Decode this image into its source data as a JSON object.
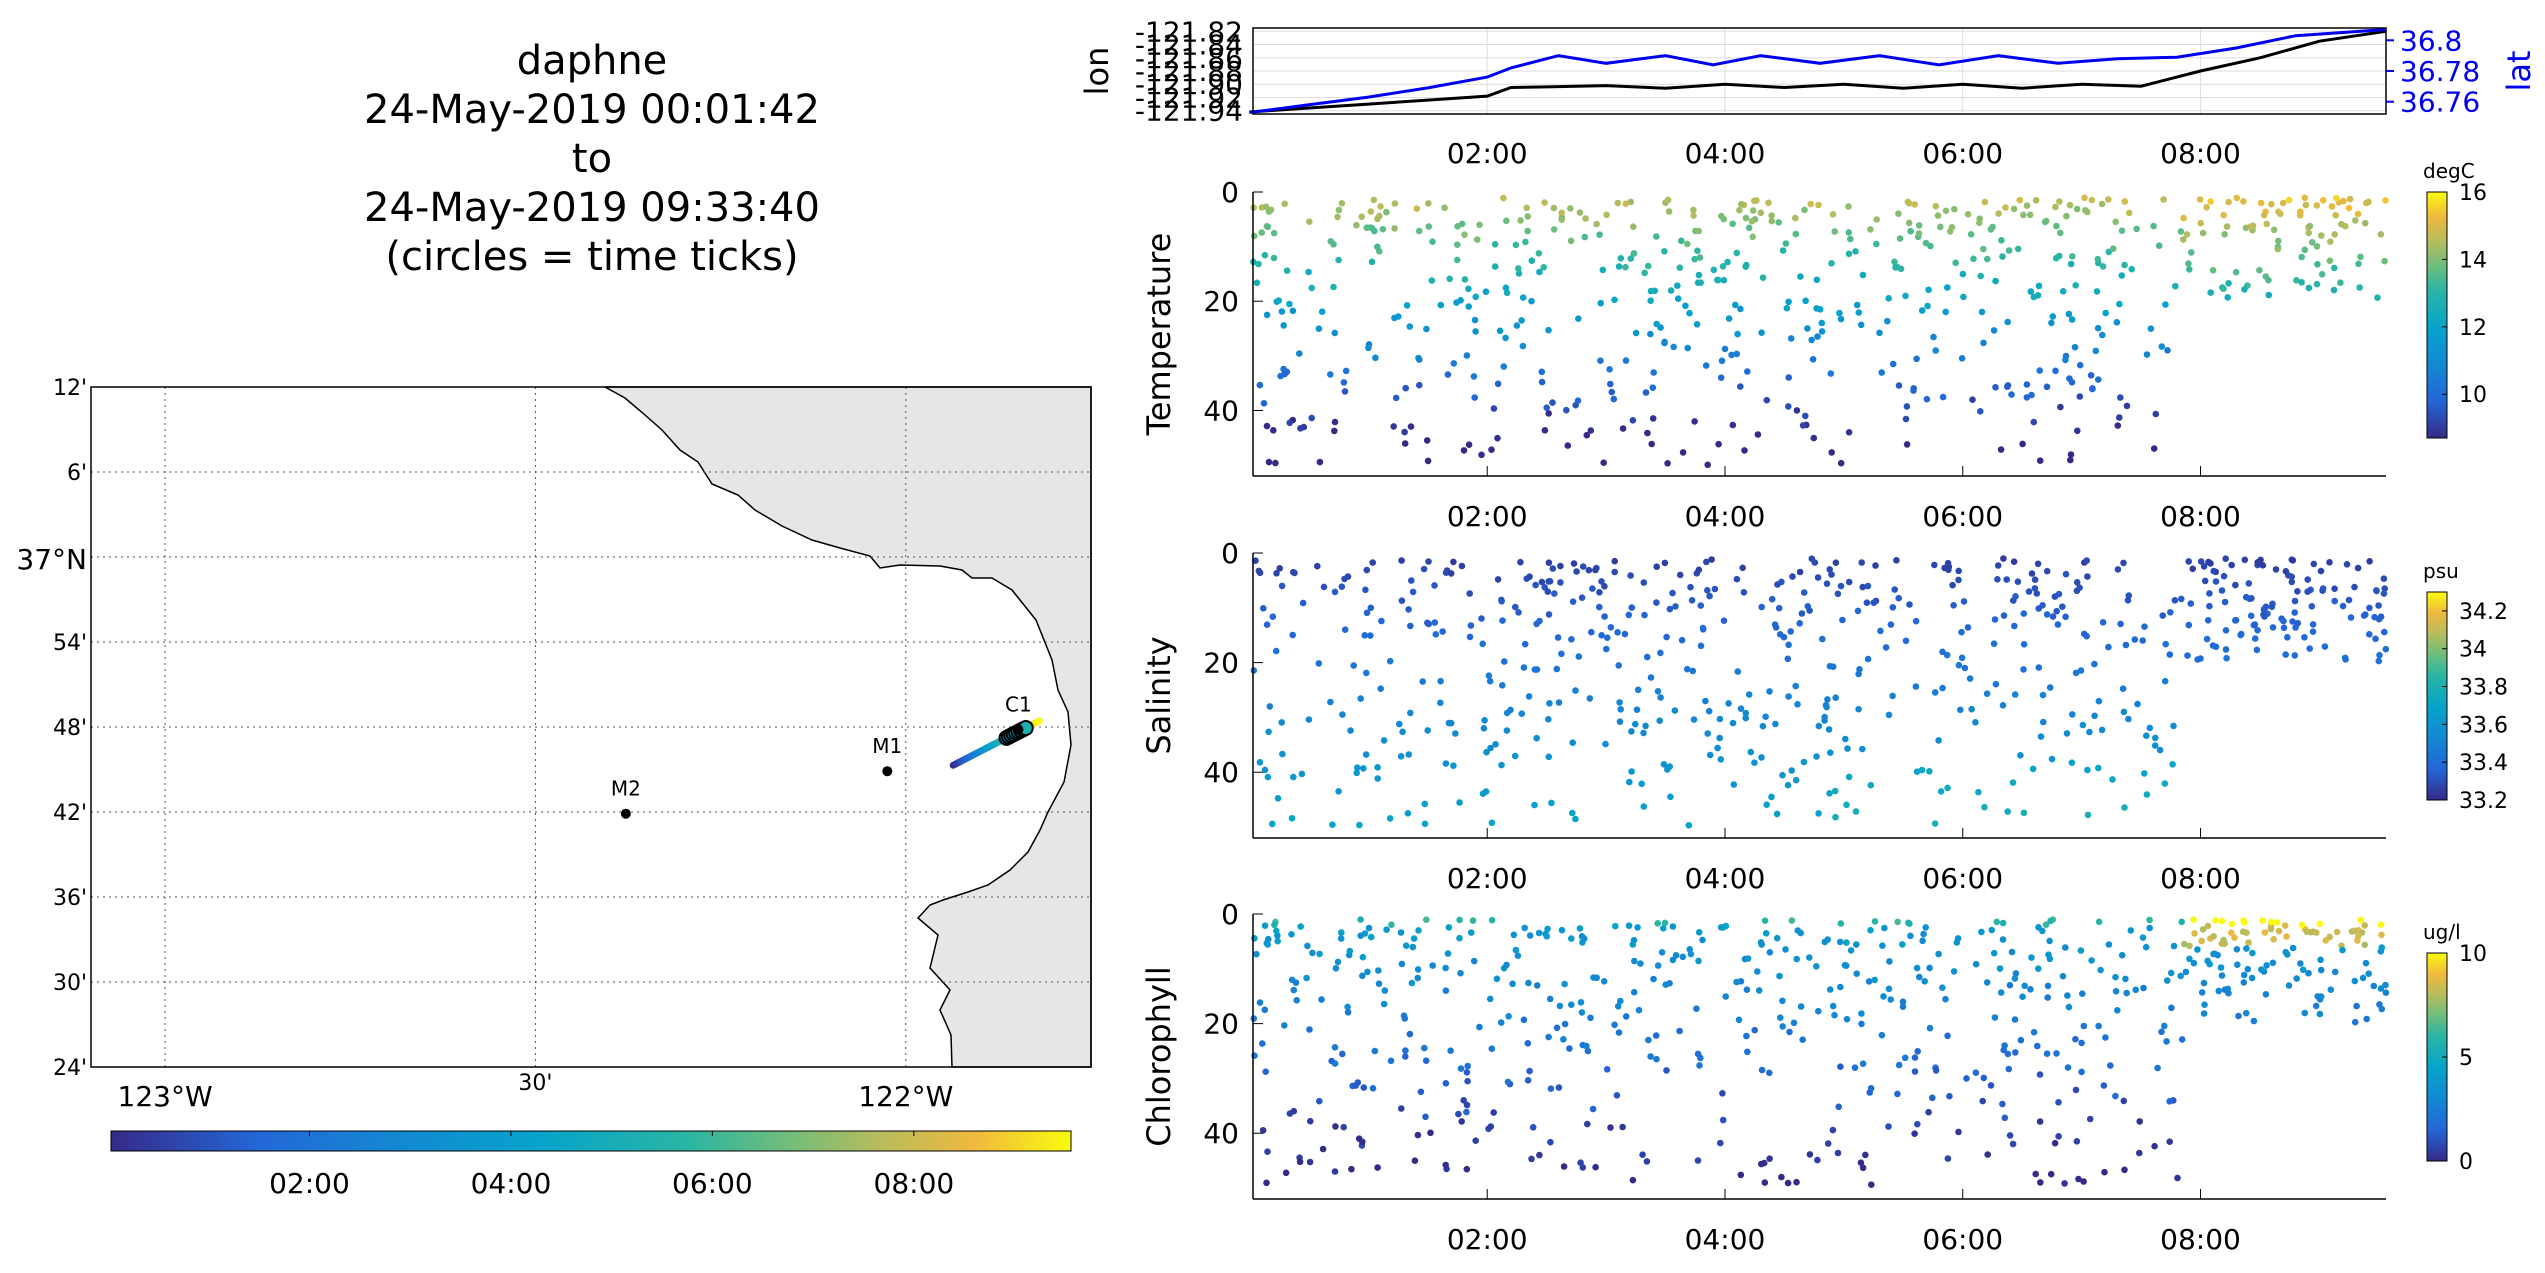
{
  "title": {
    "lines": [
      "daphne",
      "24-May-2019 00:01:42",
      "to",
      "24-May-2019 09:33:40",
      "(circles = time ticks)"
    ]
  },
  "colors": {
    "land": "#e6e6e6",
    "track_blue": "#0000ee",
    "track_black": "#000000"
  },
  "chart_data": [
    {
      "type": "line",
      "name": "lon-lat-timeseries",
      "ylabel": "lon",
      "ylabel_right": "lat",
      "x_ticks": [
        "02:00",
        "04:00",
        "06:00",
        "08:00"
      ],
      "y_ticks": [
        "-121.82",
        "-121.84",
        "-121.86",
        "-121.88",
        "-121.90",
        "-121.92",
        "-121.94"
      ],
      "y_right_ticks": [
        "36.8",
        "36.78",
        "36.76"
      ],
      "xlim_hours": [
        0.03,
        9.56
      ],
      "ylim": [
        -121.945,
        -121.815
      ],
      "y_right_lim": [
        36.752,
        36.808
      ],
      "series": [
        {
          "axis": "left",
          "color": "#000000",
          "x_hours": [
            0.0,
            0.5,
            1.0,
            1.5,
            2.0,
            2.2,
            2.5,
            3.0,
            3.5,
            4.0,
            4.5,
            5.0,
            5.5,
            6.0,
            6.5,
            7.0,
            7.5,
            8.0,
            8.5,
            9.0,
            9.56
          ],
          "values": [
            -121.942,
            -121.936,
            -121.93,
            -121.924,
            -121.918,
            -121.905,
            -121.904,
            -121.902,
            -121.906,
            -121.9,
            -121.905,
            -121.9,
            -121.906,
            -121.9,
            -121.906,
            -121.9,
            -121.903,
            -121.88,
            -121.86,
            -121.835,
            -121.82
          ]
        },
        {
          "axis": "right",
          "color": "#0000ee",
          "x_hours": [
            0.0,
            0.5,
            1.0,
            1.5,
            2.0,
            2.2,
            2.6,
            3.0,
            3.5,
            3.9,
            4.3,
            4.8,
            5.3,
            5.8,
            6.3,
            6.8,
            7.3,
            7.8,
            8.3,
            8.8,
            9.56
          ],
          "values": [
            36.753,
            36.758,
            36.763,
            36.769,
            36.776,
            36.782,
            36.79,
            36.785,
            36.79,
            36.784,
            36.79,
            36.785,
            36.79,
            36.784,
            36.79,
            36.785,
            36.788,
            36.789,
            36.795,
            36.803,
            36.807
          ]
        }
      ]
    },
    {
      "type": "scatter",
      "name": "temperature",
      "ylabel": "Temperature",
      "colorbar_label": "degC",
      "colorbar_ticks": [
        "10",
        "12",
        "14",
        "16"
      ],
      "clim": [
        8.7,
        16
      ],
      "x_ticks": [
        "02:00",
        "04:00",
        "06:00",
        "08:00"
      ],
      "y_ticks": [
        "0",
        "20",
        "40"
      ],
      "ylim": [
        0,
        52
      ],
      "reversed_y": true
    },
    {
      "type": "scatter",
      "name": "salinity",
      "ylabel": "Salinity",
      "colorbar_label": "psu",
      "colorbar_ticks": [
        "33.2",
        "33.4",
        "33.6",
        "33.8",
        "34",
        "34.2"
      ],
      "clim": [
        33.2,
        34.3
      ],
      "x_ticks": [
        "02:00",
        "04:00",
        "06:00",
        "08:00"
      ],
      "y_ticks": [
        "0",
        "20",
        "40"
      ],
      "ylim": [
        0,
        52
      ],
      "reversed_y": true
    },
    {
      "type": "scatter",
      "name": "chlorophyll",
      "ylabel": "Chlorophyll",
      "colorbar_label": "ug/l",
      "colorbar_ticks": [
        "0",
        "5",
        "10"
      ],
      "clim": [
        0,
        10
      ],
      "x_ticks": [
        "02:00",
        "04:00",
        "06:00",
        "08:00"
      ],
      "y_ticks": [
        "0",
        "20",
        "40"
      ],
      "ylim": [
        0,
        52
      ],
      "reversed_y": true
    },
    {
      "type": "scatter",
      "name": "map",
      "lon_lim": [
        -123.1,
        -121.75
      ],
      "lat_lim": [
        36.4,
        37.2
      ],
      "lat_ticks": [
        "12'",
        "6'",
        "37°N",
        "54'",
        "48'",
        "42'",
        "36'",
        "30'",
        "24'"
      ],
      "lon_ticks": [
        "123°W",
        "30'",
        "122°W"
      ],
      "stations": [
        {
          "label": "M2",
          "lon": -122.378,
          "lat": 36.698
        },
        {
          "label": "M1",
          "lon": -122.025,
          "lat": 36.748
        },
        {
          "label": "C1",
          "lon": -121.848,
          "lat": 36.797
        }
      ],
      "track": {
        "lon_start": -121.936,
        "lat_start": 36.755,
        "lon_end": -121.82,
        "lat_end": 36.807
      },
      "time_tick_circles": 9,
      "colorbar_ticks": [
        "02:00",
        "04:00",
        "06:00",
        "08:00"
      ],
      "colorbar_xlim_hours": [
        0.03,
        9.56
      ]
    }
  ]
}
